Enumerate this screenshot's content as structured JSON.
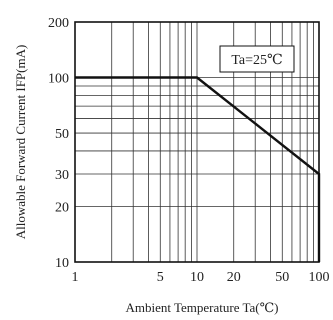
{
  "chart_data": {
    "type": "line",
    "xlabel": "Ambient Temperature Ta(℃)",
    "ylabel": "Allowable Forward Current IFP(mA)",
    "x_scale": "log",
    "y_scale": "log",
    "xlim": [
      1,
      100
    ],
    "ylim": [
      10,
      200
    ],
    "x_ticks": [
      {
        "value": 1,
        "label": "1"
      },
      {
        "value": 5,
        "label": "5"
      },
      {
        "value": 10,
        "label": "10"
      },
      {
        "value": 20,
        "label": "20"
      },
      {
        "value": 50,
        "label": "50"
      },
      {
        "value": 100,
        "label": "100"
      }
    ],
    "y_ticks": [
      {
        "value": 10,
        "label": "10"
      },
      {
        "value": 20,
        "label": "20"
      },
      {
        "value": 30,
        "label": "30"
      },
      {
        "value": 50,
        "label": "50"
      },
      {
        "value": 100,
        "label": "100"
      },
      {
        "value": 200,
        "label": "200"
      }
    ],
    "x_grid": [
      2,
      3,
      4,
      5,
      6,
      7,
      8,
      9,
      10,
      20,
      30,
      40,
      50,
      60,
      70,
      80,
      90
    ],
    "y_grid": [
      20,
      30,
      40,
      50,
      60,
      70,
      80,
      90,
      100
    ],
    "grid": true,
    "series": [
      {
        "x": [
          1,
          10,
          100,
          100
        ],
        "y": [
          100,
          100,
          30,
          10
        ]
      }
    ],
    "annotation": {
      "text": "Ta=25℃",
      "placement": "top-right"
    }
  }
}
